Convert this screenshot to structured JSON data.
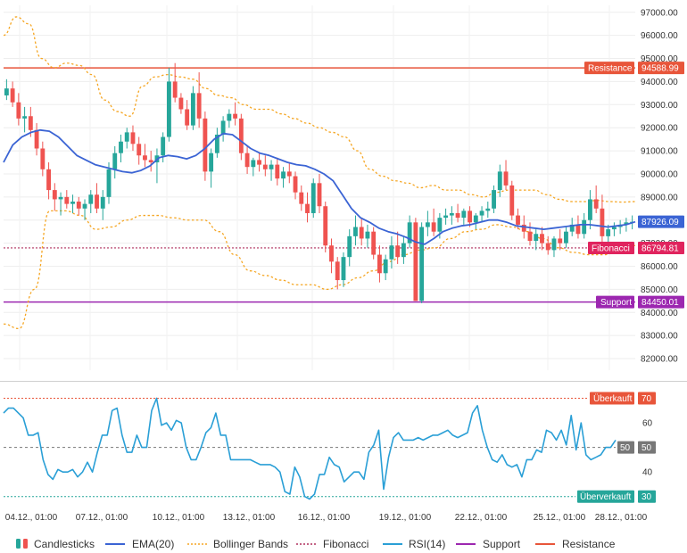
{
  "chart_data": [
    {
      "type": "candlestick",
      "title": "",
      "ylim": [
        81500,
        97300
      ],
      "y_ticks": [
        "97000.00",
        "96000.00",
        "95000.00",
        "94000.00",
        "93000.00",
        "92000.00",
        "91000.00",
        "90000.00",
        "89000.00",
        "88000.00",
        "87000.00",
        "86000.00",
        "85000.00",
        "84000.00",
        "83000.00",
        "82000.00"
      ],
      "y_tick_values": [
        97000,
        96000,
        95000,
        94000,
        93000,
        92000,
        91000,
        90000,
        89000,
        88000,
        87000,
        86000,
        85000,
        84000,
        83000,
        82000
      ],
      "x_ticks": [
        "04.12., 01:00",
        "07.12., 01:00",
        "10.12., 01:00",
        "13.12., 01:00",
        "16.12., 01:00",
        "19.12., 01:00",
        "22.12., 01:00",
        "25.12., 01:00",
        "28.12., 01:00"
      ],
      "candles": [
        [
          93400,
          94100,
          93200,
          93700
        ],
        [
          93700,
          94000,
          92900,
          93100
        ],
        [
          93100,
          93500,
          92100,
          92400
        ],
        [
          92400,
          92900,
          91800,
          92500
        ],
        [
          92500,
          92900,
          91600,
          91900
        ],
        [
          91900,
          92200,
          90800,
          91100
        ],
        [
          91100,
          91400,
          89900,
          90200
        ],
        [
          90200,
          90500,
          88900,
          89300
        ],
        [
          89300,
          89600,
          88400,
          88900
        ],
        [
          88900,
          89200,
          88200,
          89000
        ],
        [
          89000,
          89300,
          88500,
          88700
        ],
        [
          88700,
          89100,
          88300,
          88800
        ],
        [
          88800,
          89000,
          88200,
          88500
        ],
        [
          88500,
          88900,
          88000,
          88700
        ],
        [
          88700,
          89300,
          88300,
          89100
        ],
        [
          89100,
          89600,
          88300,
          88500
        ],
        [
          88500,
          89300,
          88000,
          89000
        ],
        [
          89000,
          90500,
          88700,
          90200
        ],
        [
          90200,
          91200,
          89800,
          90900
        ],
        [
          90900,
          91700,
          90500,
          91400
        ],
        [
          91400,
          92000,
          91100,
          91800
        ],
        [
          91800,
          92100,
          91000,
          91300
        ],
        [
          91300,
          91600,
          90400,
          90800
        ],
        [
          90800,
          91300,
          90300,
          90600
        ],
        [
          90600,
          91000,
          90100,
          90500
        ],
        [
          90500,
          91100,
          89600,
          90800
        ],
        [
          90800,
          91800,
          90500,
          91600
        ],
        [
          91600,
          94600,
          91400,
          94000
        ],
        [
          94000,
          94800,
          93100,
          93300
        ],
        [
          93300,
          93500,
          92600,
          92800
        ],
        [
          92800,
          93200,
          91900,
          92100
        ],
        [
          92100,
          93800,
          91900,
          93500
        ],
        [
          93500,
          94400,
          92000,
          92400
        ],
        [
          92400,
          92700,
          89700,
          90100
        ],
        [
          90100,
          91100,
          89400,
          90900
        ],
        [
          90900,
          92000,
          90700,
          91700
        ],
        [
          91700,
          92500,
          91400,
          92300
        ],
        [
          92300,
          92800,
          92000,
          92600
        ],
        [
          92600,
          93100,
          92100,
          92400
        ],
        [
          92400,
          92600,
          90600,
          90900
        ],
        [
          90900,
          91200,
          90000,
          90300
        ],
        [
          90300,
          90700,
          89900,
          90600
        ],
        [
          90600,
          90900,
          90100,
          90400
        ],
        [
          90400,
          90800,
          89900,
          90200
        ],
        [
          90200,
          90600,
          89700,
          90400
        ],
        [
          90400,
          90700,
          89500,
          89800
        ],
        [
          89800,
          90300,
          89400,
          90100
        ],
        [
          90100,
          90500,
          89600,
          89900
        ],
        [
          89900,
          90100,
          88900,
          89200
        ],
        [
          89200,
          89500,
          88400,
          88700
        ],
        [
          88700,
          89200,
          87900,
          88300
        ],
        [
          88300,
          89800,
          88100,
          89600
        ],
        [
          89600,
          90000,
          88300,
          88600
        ],
        [
          88600,
          88800,
          86600,
          86900
        ],
        [
          86900,
          87200,
          85700,
          86200
        ],
        [
          86200,
          86400,
          85000,
          85400
        ],
        [
          85400,
          86600,
          85100,
          86400
        ],
        [
          86400,
          87600,
          86000,
          87300
        ],
        [
          87300,
          88200,
          86900,
          87700
        ],
        [
          87700,
          88100,
          86900,
          87200
        ],
        [
          87200,
          87800,
          86800,
          87500
        ],
        [
          87500,
          87700,
          86300,
          86500
        ],
        [
          86500,
          86900,
          85300,
          85700
        ],
        [
          85700,
          86500,
          85400,
          86300
        ],
        [
          86300,
          87300,
          85900,
          86900
        ],
        [
          86900,
          87500,
          86100,
          86400
        ],
        [
          86400,
          87300,
          86100,
          87000
        ],
        [
          87000,
          88200,
          86800,
          87900
        ],
        [
          87900,
          88100,
          84500,
          84500
        ],
        [
          84500,
          87900,
          84400,
          87700
        ],
        [
          87700,
          88400,
          87300,
          87900
        ],
        [
          87900,
          88500,
          87300,
          87500
        ],
        [
          87500,
          88300,
          87200,
          88100
        ],
        [
          88100,
          88500,
          87800,
          88200
        ],
        [
          88200,
          88600,
          87800,
          88300
        ],
        [
          88300,
          88700,
          87900,
          88100
        ],
        [
          88100,
          88500,
          87800,
          88400
        ],
        [
          88400,
          88600,
          87700,
          87900
        ],
        [
          87900,
          88300,
          87600,
          88200
        ],
        [
          88200,
          88600,
          87900,
          88400
        ],
        [
          88400,
          88800,
          88100,
          88500
        ],
        [
          88500,
          89500,
          88300,
          89300
        ],
        [
          89300,
          90400,
          89000,
          90100
        ],
        [
          90100,
          90600,
          89300,
          89500
        ],
        [
          89500,
          89700,
          88000,
          88200
        ],
        [
          88200,
          88500,
          87600,
          87800
        ],
        [
          87800,
          88200,
          87200,
          87500
        ],
        [
          87500,
          87900,
          86900,
          87100
        ],
        [
          87100,
          87600,
          86700,
          87400
        ],
        [
          87400,
          87700,
          86700,
          87000
        ],
        [
          87000,
          87300,
          86500,
          86700
        ],
        [
          86700,
          87300,
          86400,
          87200
        ],
        [
          87200,
          87600,
          86700,
          87000
        ],
        [
          87000,
          87700,
          86800,
          87500
        ],
        [
          87500,
          88100,
          87300,
          87800
        ],
        [
          87800,
          88200,
          87200,
          87400
        ],
        [
          87400,
          88300,
          87200,
          88000
        ],
        [
          88000,
          89300,
          87600,
          88900
        ],
        [
          88900,
          89500,
          88300,
          88500
        ],
        [
          88500,
          89100,
          86900,
          87300
        ],
        [
          87300,
          87800,
          87000,
          87600
        ],
        [
          87600,
          87900,
          87300,
          87700
        ],
        [
          87700,
          88000,
          87400,
          87800
        ],
        [
          87800,
          88100,
          87500,
          87900
        ],
        [
          87900,
          88200,
          87600,
          87926
        ]
      ],
      "ema20": [
        90500,
        91250,
        91600,
        91800,
        91900,
        91850,
        91600,
        91200,
        90800,
        90600,
        90400,
        90300,
        90200,
        90100,
        90050,
        90150,
        90350,
        90700,
        90800,
        90750,
        90650,
        90800,
        91100,
        91500,
        91750,
        91700,
        91400,
        91100,
        90900,
        90800,
        90650,
        90500,
        90400,
        90350,
        90200,
        90000,
        89700,
        89100,
        88500,
        88100,
        87900,
        87650,
        87500,
        87400,
        87250,
        87050,
        86950,
        87200,
        87500,
        87650,
        87750,
        87800,
        87900,
        88000,
        88000,
        87900,
        87750,
        87700,
        87650,
        87600,
        87650,
        87700,
        87750,
        87800,
        87800,
        87750,
        87700,
        87750,
        87800,
        87926
      ],
      "bb_upper": [
        96000,
        96800,
        96500,
        95000,
        94600,
        94800,
        94700,
        94300,
        93200,
        92700,
        92500,
        93800,
        94200,
        94300,
        94200,
        94100,
        93700,
        93400,
        93300,
        93000,
        92800,
        92800,
        92600,
        92400,
        92200,
        92000,
        91800,
        91600,
        91000,
        90200,
        89900,
        89700,
        89600,
        89400,
        89500,
        89300,
        89300,
        89100,
        89000,
        89200,
        89300,
        89300,
        89300,
        89100,
        88900,
        88800,
        88800,
        88850,
        88800,
        88780,
        88800
      ],
      "bb_lower": [
        83500,
        83300,
        85000,
        88400,
        88400,
        88200,
        87600,
        87700,
        88000,
        88200,
        88200,
        88100,
        88000,
        88000,
        87500,
        86500,
        85800,
        85600,
        85400,
        85200,
        85200,
        85000,
        85200,
        85500,
        85800,
        86200,
        86500,
        86700,
        86800,
        87200,
        87500,
        87600,
        87800,
        87700,
        87500,
        87200,
        86800,
        86600,
        86500,
        86500,
        86700,
        86900
      ],
      "series_names": [
        "Candlesticks",
        "EMA(20)",
        "Bollinger Bands",
        "Fibonacci",
        "RSI(14)",
        "Support",
        "Resistance"
      ],
      "resistance": {
        "label": "Resistance",
        "value": "94588.99",
        "level": 94588.99,
        "color": "#e8553a"
      },
      "fibonacci": {
        "label": "Fibonacci",
        "value": "86794.81",
        "level": 86794.81,
        "color": "#e0245e"
      },
      "support": {
        "label": "Support",
        "value": "84450.01",
        "level": 84450.01,
        "color": "#9c27b0"
      },
      "last_price": {
        "value": "87926.09",
        "level": 87926.09,
        "color": "#3b64d4"
      },
      "colors": {
        "up": "#26a69a",
        "down": "#ef5350",
        "ema": "#3b64d4",
        "bollinger": "#f5a623",
        "fib": "#b0305e"
      }
    },
    {
      "type": "line",
      "title": "",
      "ylim": [
        27,
        76
      ],
      "y_ticks": [
        "60",
        "40"
      ],
      "y_tick_values": [
        60,
        40
      ],
      "rsi": [
        64,
        66,
        66,
        64,
        62,
        55,
        55,
        56,
        45,
        39,
        37,
        41,
        40,
        40,
        41,
        38,
        40,
        44,
        40,
        48,
        55,
        55,
        65,
        66,
        55,
        48,
        48,
        55,
        50,
        50,
        65,
        70,
        59,
        60,
        57,
        61,
        60,
        50,
        45,
        45,
        50,
        56,
        58,
        64,
        55,
        55,
        45,
        45,
        45,
        45,
        45,
        44,
        43,
        43,
        43,
        42,
        40,
        32,
        31,
        42,
        38,
        30,
        29,
        31,
        39,
        39,
        46,
        43,
        42,
        36,
        38,
        40,
        40,
        37,
        48,
        51,
        57,
        33,
        46,
        54,
        56,
        53,
        53,
        53,
        54,
        53,
        54,
        55,
        55,
        56,
        57,
        55,
        54,
        55,
        56,
        64,
        67,
        57,
        50,
        45,
        44,
        47,
        43,
        42,
        43,
        38,
        45,
        45,
        49,
        48,
        57,
        56,
        53,
        57,
        51,
        63,
        49,
        60,
        47,
        45,
        46,
        47,
        50,
        50,
        53
      ],
      "overbought": {
        "label": "Überkauft",
        "value": "70",
        "level": 70,
        "color": "#e8553a"
      },
      "mid": {
        "label": "50",
        "value": "50",
        "level": 50,
        "color": "#777777"
      },
      "oversold": {
        "label": "Überverkauft",
        "value": "30",
        "level": 30,
        "color": "#26a69a"
      },
      "last_rsi": {
        "value": "50",
        "level": 50,
        "color": "#888888"
      },
      "color": "#2a9fd6"
    }
  ]
}
